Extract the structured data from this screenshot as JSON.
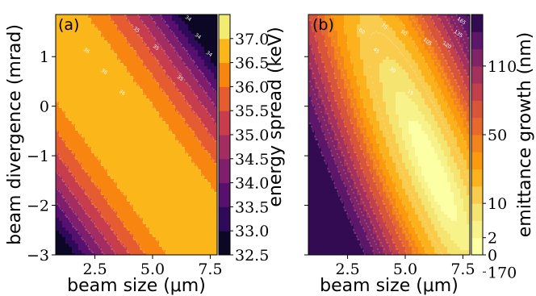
{
  "chart_data": [
    {
      "type": "heatmap",
      "panel_label": "(a)",
      "xlabel": "beam size (μm)",
      "ylabel": "beam divergence (mrad)",
      "xlim": [
        0.8,
        7.8
      ],
      "ylim": [
        -3,
        1.85
      ],
      "xticks": [
        {
          "value": 2.5,
          "label": "2.5"
        },
        {
          "value": 5.0,
          "label": "5.0"
        },
        {
          "value": 7.5,
          "label": "7.5"
        }
      ],
      "yticks": [
        {
          "value": -3,
          "label": "−3"
        },
        {
          "value": -2,
          "label": "−2"
        },
        {
          "value": -1,
          "label": "−1"
        },
        {
          "value": 0,
          "label": "0"
        },
        {
          "value": 1,
          "label": "1"
        }
      ],
      "colorbar": {
        "label": "energy spread (keV)",
        "levels": [
          32.5,
          33.0,
          33.5,
          34.0,
          34.5,
          35.0,
          35.5,
          36.0,
          36.5,
          37.0
        ],
        "tick_labels": [
          "32.5",
          "33.0",
          "33.5",
          "34.0",
          "34.5",
          "35.0",
          "35.5",
          "36.0",
          "36.5",
          "37.0"
        ],
        "colors": [
          "#0b0724",
          "#2f0a5b",
          "#57106e",
          "#7e1e6c",
          "#a32c61",
          "#c73d4e",
          "#e55c30",
          "#f8850f",
          "#fbb61a",
          "#f1ed71"
        ]
      },
      "contour_labels": [
        "34",
        "34",
        "34",
        "35",
        "35",
        "35",
        "36",
        "36",
        "36"
      ]
    },
    {
      "type": "heatmap",
      "panel_label": "(b)",
      "xlabel": "beam size (μm)",
      "ylabel": "",
      "xlim": [
        0.8,
        7.8
      ],
      "ylim": [
        -3,
        1.85
      ],
      "xticks": [
        {
          "value": 2.5,
          "label": "2.5"
        },
        {
          "value": 5.0,
          "label": "5.0"
        },
        {
          "value": 7.5,
          "label": "7.5"
        }
      ],
      "colorbar": {
        "label": "emittance growth (nm)",
        "levels": [
          0,
          2,
          5,
          10,
          20,
          30,
          40,
          50,
          60,
          75,
          90,
          110,
          135,
          165,
          190
        ],
        "tick_labels": [
          {
            "value": 0,
            "label": "0"
          },
          {
            "value": 2,
            "label": "2"
          },
          {
            "value": 10,
            "label": "10"
          },
          {
            "value": 50,
            "label": "50"
          },
          {
            "value": 110,
            "label": "110"
          },
          {
            "value": 170,
            "label": "170"
          }
        ],
        "colors": [
          "#fcffa4",
          "#f7f38a",
          "#f6e470",
          "#f9cc4e",
          "#fbb21d",
          "#fa9a0c",
          "#f3831b",
          "#e8692c",
          "#d9553a",
          "#c1404c",
          "#a3315b",
          "#812467",
          "#5c176a",
          "#320b52"
        ]
      },
      "contour_labels": [
        "15",
        "30",
        "45",
        "60",
        "75",
        "90",
        "105",
        "120",
        "135",
        "165"
      ]
    }
  ]
}
